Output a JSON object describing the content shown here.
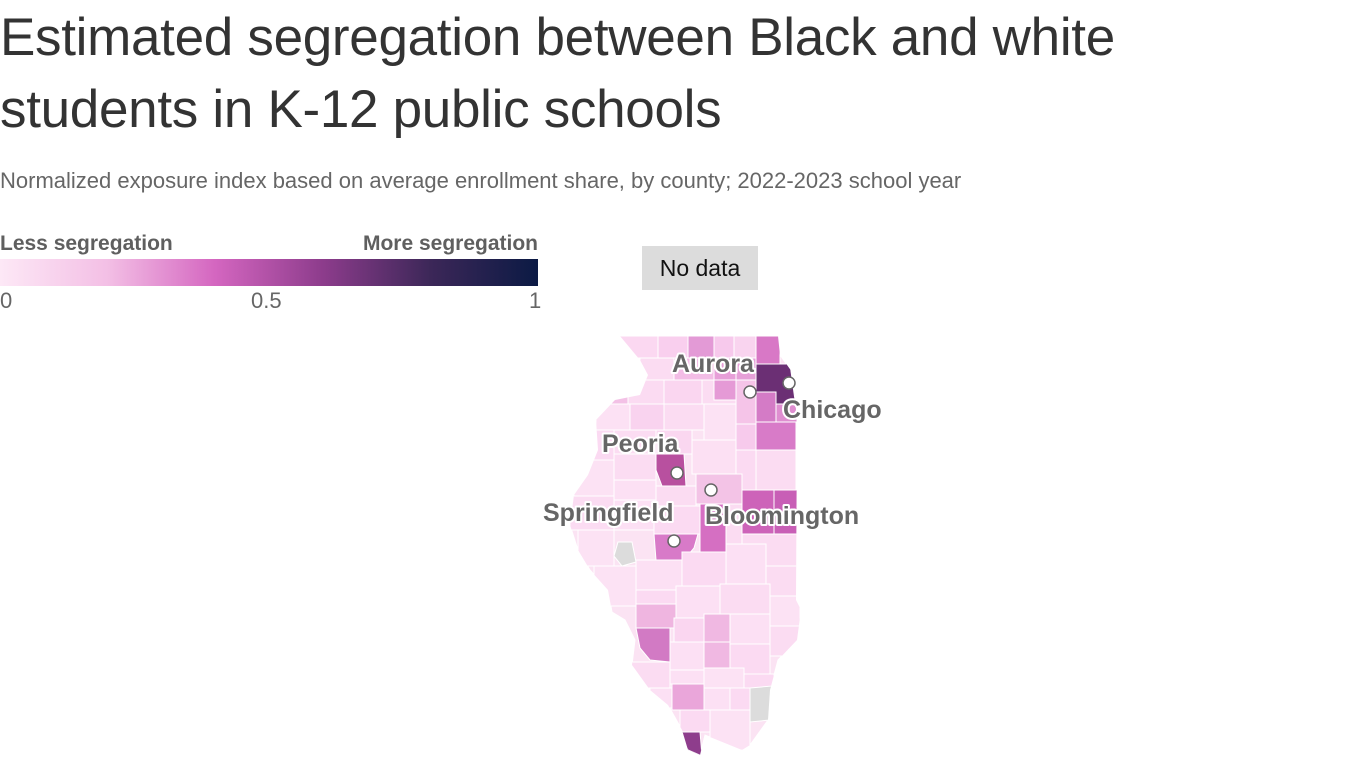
{
  "title": "Estimated segregation between Black and white students in K-12 public schools",
  "subtitle": "Normalized exposure index based on average enrollment share, by county; 2022-2023 school year",
  "legend": {
    "low_label": "Less segregation",
    "high_label": "More segregation",
    "ticks": [
      "0",
      "0.5",
      "1"
    ],
    "colors": [
      "#fde8f6",
      "#f3bfe5",
      "#d466c0",
      "#8d3c8c",
      "#3c2758",
      "#0b1a44"
    ],
    "no_data_label": "No data",
    "no_data_color": "#dcdcdc"
  },
  "map": {
    "region": "Illinois",
    "cities": [
      {
        "name": "Aurora"
      },
      {
        "name": "Chicago"
      },
      {
        "name": "Peoria"
      },
      {
        "name": "Springfield"
      },
      {
        "name": "Bloomington"
      }
    ]
  }
}
